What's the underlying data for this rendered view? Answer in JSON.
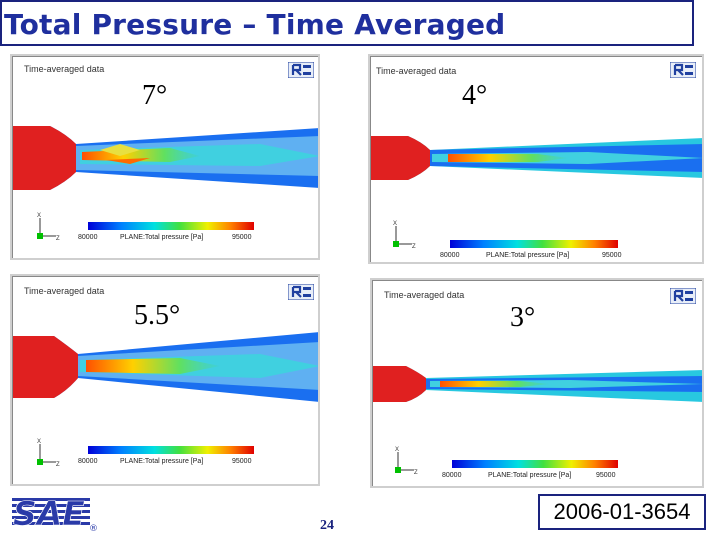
{
  "slide": {
    "title": "Total Pressure – Time Averaged",
    "page_number": "24",
    "paper_id": "2006-01-3654",
    "logo_text": "SAE",
    "registered_mark": "®",
    "title_color": "#1f2f9e"
  },
  "panels": [
    {
      "title": "Time-averaged data",
      "angle": "7°",
      "cbar_min": "80000",
      "cbar_label": "PLANE:Total pressure [Pa]",
      "cbar_max": "95000",
      "axis_a": "X",
      "axis_b": "Z"
    },
    {
      "title": "Time-averaged data",
      "angle": "4°",
      "cbar_min": "80000",
      "cbar_label": "PLANE:Total pressure [Pa]",
      "cbar_max": "95000",
      "axis_a": "X",
      "axis_b": "Z"
    },
    {
      "title": "Time-averaged data",
      "angle": "5.5°",
      "cbar_min": "80000",
      "cbar_label": "PLANE:Total pressure [Pa]",
      "cbar_max": "95000",
      "axis_a": "X",
      "axis_b": "Z"
    },
    {
      "title": "Time-averaged data",
      "angle": "3°",
      "cbar_min": "80000",
      "cbar_label": "PLANE:Total pressure [Pa]",
      "cbar_max": "95000",
      "axis_a": "X",
      "axis_b": "Z"
    }
  ]
}
